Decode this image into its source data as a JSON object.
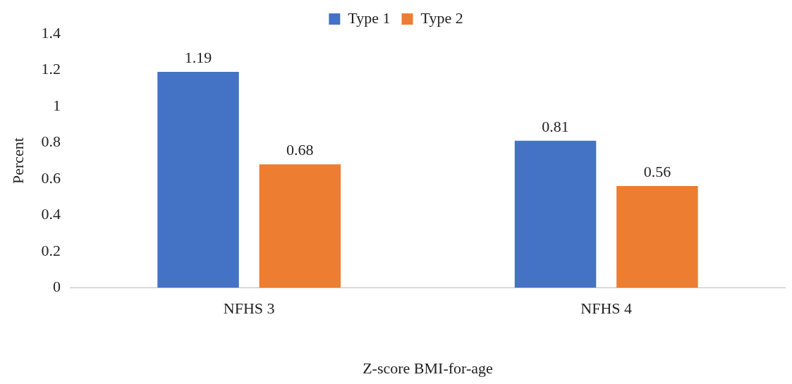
{
  "chart_data": {
    "type": "bar",
    "xlabel": "Z-score BMI-for-age",
    "ylabel": "Percent",
    "categories": [
      "NFHS 3",
      "NFHS 4"
    ],
    "series": [
      {
        "name": "Type 1",
        "color": "#4472c4",
        "values": [
          1.19,
          0.81
        ]
      },
      {
        "name": "Type 2",
        "color": "#ed7d31",
        "values": [
          0.68,
          0.56
        ]
      }
    ],
    "ylim": [
      0,
      1.4
    ],
    "yticks": [
      0,
      0.2,
      0.4,
      0.6,
      0.8,
      1,
      1.2,
      1.4
    ],
    "grid": false,
    "legend": "top",
    "data_labels": true
  }
}
